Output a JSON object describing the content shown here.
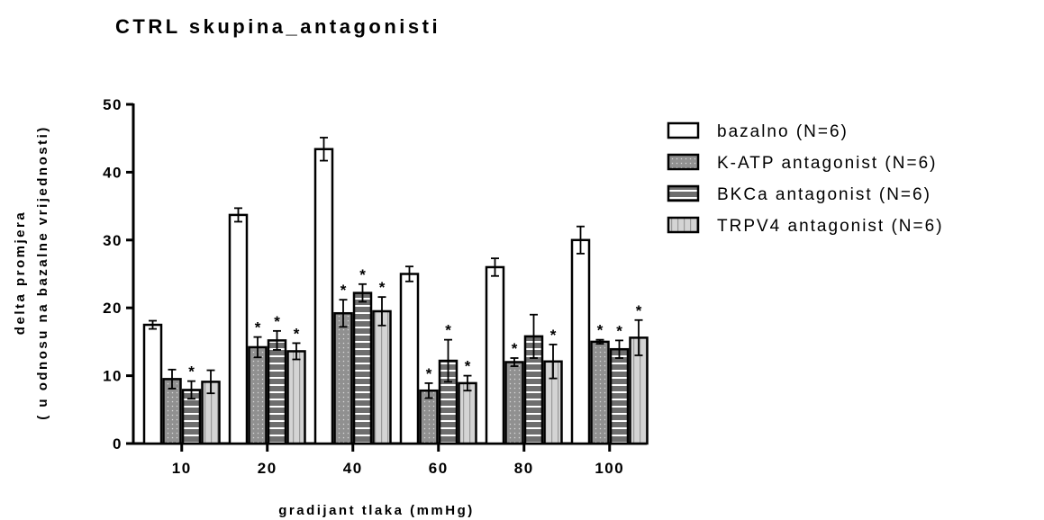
{
  "chart_data": {
    "type": "bar",
    "title": "CTRL skupina_antagonisti",
    "xlabel": "gradijant tlaka (mmHg)",
    "ylabel": [
      "delta promjera",
      "( u odnosu na bazalne vrijednosti)"
    ],
    "ylim": [
      0,
      50
    ],
    "yticks": [
      "0",
      "10",
      "20",
      "30",
      "40",
      "50"
    ],
    "categories": [
      "10",
      "20",
      "40",
      "60",
      "80",
      "100"
    ],
    "legend_position": "right",
    "grid": false,
    "series": [
      {
        "name": "bazalno (N=6)",
        "pattern": "white",
        "values": [
          17.5,
          33.7,
          43.4,
          25.0,
          26.0,
          30.0
        ],
        "errors": [
          0.6,
          1.0,
          1.7,
          1.1,
          1.3,
          2.0
        ],
        "significant": [
          false,
          false,
          false,
          false,
          false,
          false
        ]
      },
      {
        "name": "K-ATP antagonist (N=6)",
        "pattern": "dots",
        "values": [
          9.5,
          14.2,
          19.2,
          7.8,
          12.0,
          15.0
        ],
        "errors": [
          1.4,
          1.5,
          2.0,
          1.1,
          0.6,
          0.3
        ],
        "significant": [
          false,
          true,
          true,
          true,
          true,
          true
        ]
      },
      {
        "name": "BKCa antagonist (N=6)",
        "pattern": "hstripes",
        "values": [
          7.9,
          15.2,
          22.2,
          12.2,
          15.8,
          13.9
        ],
        "errors": [
          1.3,
          1.4,
          1.3,
          3.1,
          3.2,
          1.3
        ],
        "significant": [
          true,
          true,
          true,
          true,
          false,
          true
        ]
      },
      {
        "name": "TRPV4 antagonist (N=6)",
        "pattern": "vstripes",
        "values": [
          9.1,
          13.6,
          19.5,
          8.9,
          12.1,
          15.6
        ],
        "errors": [
          1.7,
          1.2,
          2.1,
          1.1,
          2.5,
          2.6
        ],
        "significant": [
          false,
          true,
          true,
          true,
          true,
          true
        ]
      }
    ],
    "annotation": "*"
  }
}
